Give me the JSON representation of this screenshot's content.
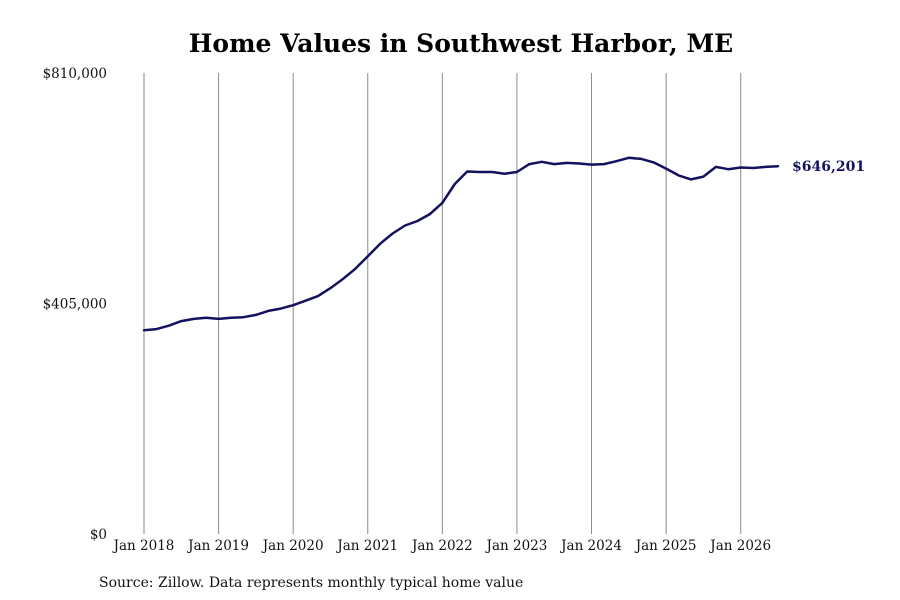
{
  "chart_data": {
    "type": "line",
    "title": "Home Values in Southwest Harbor, ME",
    "xlabel": "",
    "ylabel": "",
    "ylim": [
      0,
      810000
    ],
    "y_ticks": [
      {
        "value": 0,
        "label": "$0"
      },
      {
        "value": 405000,
        "label": "$405,000"
      },
      {
        "value": 810000,
        "label": "$810,000"
      }
    ],
    "x_ticks": [
      {
        "value": 2018.0,
        "label": "Jan 2018"
      },
      {
        "value": 2019.0,
        "label": "Jan 2019"
      },
      {
        "value": 2020.0,
        "label": "Jan 2020"
      },
      {
        "value": 2021.0,
        "label": "Jan 2021"
      },
      {
        "value": 2022.0,
        "label": "Jan 2022"
      },
      {
        "value": 2023.0,
        "label": "Jan 2023"
      },
      {
        "value": 2024.0,
        "label": "Jan 2024"
      },
      {
        "value": 2025.0,
        "label": "Jan 2025"
      },
      {
        "value": 2026.0,
        "label": "Jan 2026"
      }
    ],
    "xlim": [
      2018.0,
      2026.5
    ],
    "grid": "vertical",
    "color": "#14125e",
    "series": [
      {
        "end_label": "$646,201",
        "x": [
          2018.0,
          2018.167,
          2018.333,
          2018.5,
          2018.667,
          2018.833,
          2019.0,
          2019.167,
          2019.333,
          2019.5,
          2019.667,
          2019.833,
          2020.0,
          2020.167,
          2020.333,
          2020.5,
          2020.667,
          2020.833,
          2021.0,
          2021.167,
          2021.333,
          2021.5,
          2021.667,
          2021.833,
          2022.0,
          2022.167,
          2022.333,
          2022.5,
          2022.667,
          2022.833,
          2023.0,
          2023.167,
          2023.333,
          2023.5,
          2023.667,
          2023.833,
          2024.0,
          2024.167,
          2024.333,
          2024.5,
          2024.667,
          2024.833,
          2025.0,
          2025.167,
          2025.333,
          2025.5,
          2025.667,
          2025.833,
          2026.0,
          2026.167,
          2026.333,
          2026.5
        ],
        "values": [
          358000,
          360000,
          366000,
          374000,
          378000,
          380000,
          378000,
          380000,
          381000,
          385000,
          392000,
          396000,
          402000,
          410000,
          418000,
          432000,
          448000,
          466000,
          488000,
          510000,
          528000,
          542000,
          550000,
          562000,
          582000,
          615000,
          637000,
          636000,
          636000,
          633000,
          636000,
          650000,
          654000,
          650000,
          652000,
          651000,
          649000,
          650000,
          655000,
          661000,
          659000,
          653000,
          642000,
          630000,
          623000,
          628000,
          645000,
          641000,
          644000,
          643000,
          645000,
          646201
        ]
      }
    ],
    "source_note": "Source: Zillow. Data represents monthly typical home value"
  }
}
